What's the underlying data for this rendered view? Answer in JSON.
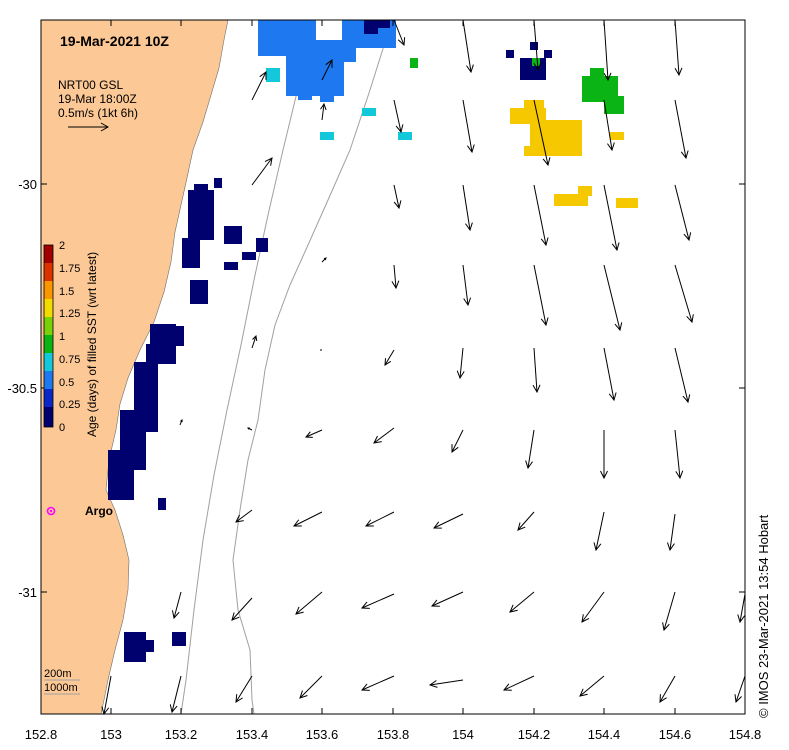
{
  "map": {
    "date_label": "19-Mar-2021 10Z",
    "current_label": {
      "product": "NRT00 GSL",
      "datetime": "19-Mar 18:00Z",
      "scale": "0.5m/s (1kt 6h)"
    },
    "colorbar": {
      "title": "Age (days) of filled SST (wrt latest)",
      "ticks": [
        "2",
        "1.75",
        "1.5",
        "1.25",
        "1",
        "0.75",
        "0.5",
        "0.25",
        "0"
      ],
      "colors": [
        "#00006e",
        "#0a28c8",
        "#1e78f0",
        "#14c8dc",
        "#0ab414",
        "#78d20a",
        "#f0dc00",
        "#fa9600",
        "#dc3200",
        "#a00000"
      ]
    },
    "x_axis": {
      "ticks": [
        "152.8",
        "153",
        "153.2",
        "153.4",
        "153.6",
        "153.8",
        "154",
        "154.2",
        "154.4",
        "154.6",
        "154.8"
      ]
    },
    "y_axis": {
      "ticks": [
        "-30",
        "-30.5",
        "-31"
      ]
    },
    "argo_label": "Argo",
    "contour_labels": {
      "shallow": "200m",
      "deep": "1000m"
    },
    "credit": "© IMOS 23-Mar-2021 13:54 Hobart",
    "colors": {
      "land": "#fcc896",
      "contour": "#a0a0a0",
      "argo": "#ff00ff",
      "age_0": "#00006e",
      "age_0_5": "#1e78f0",
      "age_0_75": "#14c8dc",
      "age_1": "#0ab414",
      "age_1_5": "#f5c800"
    }
  }
}
